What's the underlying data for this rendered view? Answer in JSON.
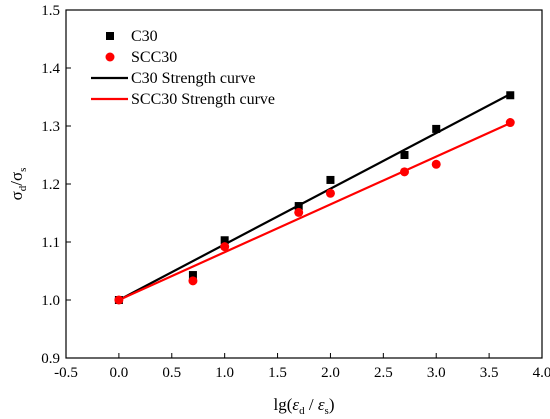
{
  "chart_data": {
    "type": "scatter",
    "xlabel": "lg(ε̇d / ε̇s)",
    "ylabel": "σd/σs",
    "xlim": [
      -0.5,
      4.0
    ],
    "ylim": [
      0.9,
      1.5
    ],
    "xticks": [
      "-0.5",
      "0.0",
      "0.5",
      "1.0",
      "1.5",
      "2.0",
      "2.5",
      "3.0",
      "3.5",
      "4.0"
    ],
    "yticks": [
      "0.9",
      "1.0",
      "1.1",
      "1.2",
      "1.3",
      "1.4",
      "1.5"
    ],
    "grid": false,
    "legend_position": "top-left",
    "series": [
      {
        "name": "C30",
        "kind": "scatter",
        "marker": "square",
        "color": "#000000",
        "x": [
          0.0,
          0.7,
          1.0,
          1.7,
          2.0,
          2.7,
          3.0,
          3.7
        ],
        "y": [
          1.0,
          1.043,
          1.103,
          1.162,
          1.207,
          1.25,
          1.295,
          1.353
        ]
      },
      {
        "name": "SCC30",
        "kind": "scatter",
        "marker": "circle",
        "color": "#ff0000",
        "x": [
          0.0,
          0.7,
          1.0,
          1.7,
          2.0,
          2.7,
          3.0,
          3.7
        ],
        "y": [
          1.0,
          1.033,
          1.092,
          1.151,
          1.184,
          1.221,
          1.234,
          1.306
        ]
      },
      {
        "name": "C30 Strength curve",
        "kind": "line",
        "color": "#000000",
        "x": [
          0.0,
          3.7
        ],
        "y": [
          1.0,
          1.355
        ]
      },
      {
        "name": "SCC30 Strength curve",
        "kind": "line",
        "color": "#ff0000",
        "x": [
          0.0,
          3.7
        ],
        "y": [
          1.0,
          1.305
        ]
      }
    ]
  }
}
